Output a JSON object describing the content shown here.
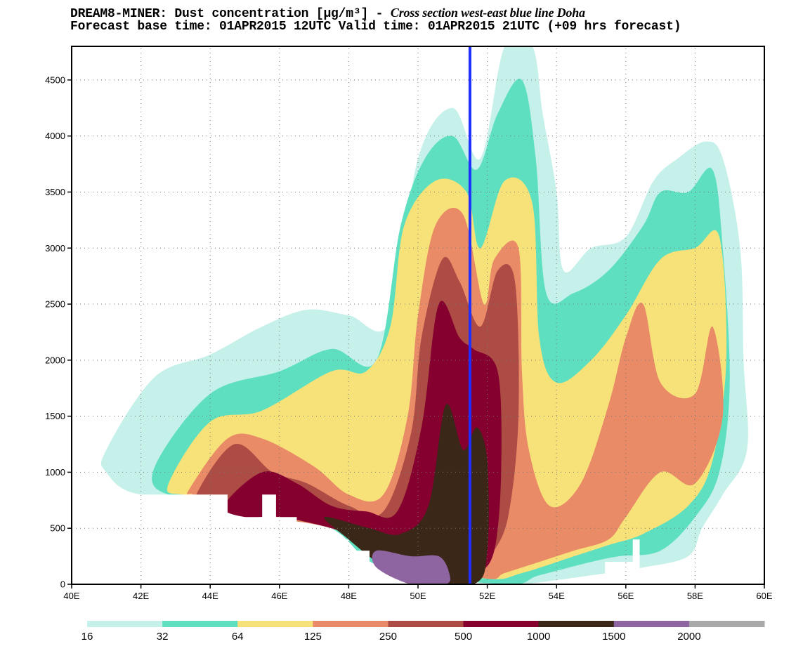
{
  "header": {
    "line1_prefix": "DREAM8-MINER: Dust concentration [μg/m³] - ",
    "line1_italic": "Cross section west-east  blue line Doha",
    "line2": "Forecast base time: 01APR2015 12UTC  Valid time: 01APR2015 21UTC (+09 hrs forecast)"
  },
  "colors": {
    "levels": [
      "#c6f0ea",
      "#5ee0c0",
      "#f7e27a",
      "#e88b66",
      "#ad4c45",
      "#85002f",
      "#3b2718",
      "#8e65a0",
      "#a9a9a9"
    ],
    "marker_line": "#1f2fff",
    "grid": "#777777"
  },
  "chart_data": {
    "type": "heatmap",
    "title": "Dust concentration [μg/m³] - Cross section west-east blue line Doha",
    "xlabel": "",
    "ylabel": "",
    "xlim": [
      40,
      60
    ],
    "ylim": [
      0,
      4800
    ],
    "x_ticks": [
      "40E",
      "42E",
      "44E",
      "46E",
      "48E",
      "50E",
      "52E",
      "54E",
      "56E",
      "58E",
      "60E"
    ],
    "y_ticks": [
      "0",
      "500",
      "1000",
      "1500",
      "2000",
      "2500",
      "3000",
      "3500",
      "4000",
      "4500"
    ],
    "grid": true,
    "marker_line_longitude": 51.5,
    "legend": {
      "position": "bottom",
      "labels": [
        "16",
        "32",
        "64",
        "125",
        "250",
        "500",
        "1000",
        "1500",
        "2000"
      ],
      "thresholds": [
        16,
        32,
        64,
        125,
        250,
        500,
        1000,
        1500,
        2000
      ]
    },
    "contour_regions": [
      {
        "level": 16,
        "polygon": [
          [
            41.0,
            1200
          ],
          [
            42.4,
            1850
          ],
          [
            44.0,
            2050
          ],
          [
            45.5,
            2300
          ],
          [
            46.8,
            2450
          ],
          [
            48.0,
            2400
          ],
          [
            49.2,
            2350
          ],
          [
            50.0,
            3800
          ],
          [
            51.0,
            4250
          ],
          [
            51.8,
            3800
          ],
          [
            52.5,
            4800
          ],
          [
            53.3,
            4800
          ],
          [
            53.6,
            4200
          ],
          [
            54.0,
            3500
          ],
          [
            54.2,
            2800
          ],
          [
            55.0,
            3000
          ],
          [
            56.0,
            3100
          ],
          [
            56.8,
            3600
          ],
          [
            57.5,
            3800
          ],
          [
            58.3,
            3950
          ],
          [
            58.8,
            3800
          ],
          [
            59.3,
            3000
          ],
          [
            59.4,
            2000
          ],
          [
            59.5,
            1200
          ],
          [
            58.8,
            800
          ],
          [
            58.2,
            500
          ],
          [
            57.8,
            250
          ],
          [
            56.5,
            150
          ],
          [
            55.0,
            80
          ],
          [
            53.0,
            0
          ],
          [
            52.0,
            0
          ],
          [
            49.5,
            150
          ],
          [
            47.5,
            500
          ],
          [
            45.0,
            800
          ],
          [
            42.0,
            800
          ],
          [
            41.0,
            1000
          ]
        ]
      },
      {
        "level": 32,
        "polygon": [
          [
            42.4,
            1050
          ],
          [
            44.0,
            1700
          ],
          [
            46.0,
            1900
          ],
          [
            47.5,
            2100
          ],
          [
            48.8,
            2000
          ],
          [
            49.5,
            3200
          ],
          [
            50.2,
            3800
          ],
          [
            51.0,
            4000
          ],
          [
            51.7,
            3700
          ],
          [
            52.3,
            4200
          ],
          [
            53.0,
            4500
          ],
          [
            53.4,
            3800
          ],
          [
            53.7,
            2600
          ],
          [
            54.5,
            2600
          ],
          [
            55.5,
            2800
          ],
          [
            56.5,
            3200
          ],
          [
            57.0,
            3500
          ],
          [
            57.8,
            3500
          ],
          [
            58.5,
            3700
          ],
          [
            58.8,
            3000
          ],
          [
            59.0,
            1800
          ],
          [
            58.7,
            1000
          ],
          [
            58.0,
            600
          ],
          [
            57.0,
            300
          ],
          [
            55.8,
            250
          ],
          [
            55.0,
            200
          ],
          [
            53.5,
            80
          ],
          [
            52.5,
            0
          ],
          [
            49.0,
            150
          ],
          [
            47.5,
            500
          ],
          [
            45.0,
            800
          ],
          [
            42.8,
            800
          ]
        ]
      },
      {
        "level": 64,
        "polygon": [
          [
            42.8,
            900
          ],
          [
            44.0,
            1450
          ],
          [
            45.5,
            1550
          ],
          [
            47.5,
            1900
          ],
          [
            48.5,
            1900
          ],
          [
            49.2,
            2300
          ],
          [
            49.6,
            3200
          ],
          [
            50.5,
            3600
          ],
          [
            51.4,
            3500
          ],
          [
            51.8,
            3000
          ],
          [
            52.5,
            3600
          ],
          [
            53.3,
            3400
          ],
          [
            53.5,
            2200
          ],
          [
            54.0,
            1800
          ],
          [
            55.0,
            2000
          ],
          [
            56.0,
            2400
          ],
          [
            57.0,
            2900
          ],
          [
            58.0,
            3000
          ],
          [
            58.7,
            3100
          ],
          [
            58.9,
            2000
          ],
          [
            58.5,
            1100
          ],
          [
            57.8,
            700
          ],
          [
            56.5,
            450
          ],
          [
            55.5,
            350
          ],
          [
            54.5,
            250
          ],
          [
            53.0,
            100
          ],
          [
            52.0,
            50
          ],
          [
            49.5,
            200
          ],
          [
            47.5,
            550
          ],
          [
            45.0,
            800
          ],
          [
            43.2,
            800
          ]
        ]
      },
      {
        "level": 125,
        "polygon": [
          [
            43.4,
            850
          ],
          [
            44.5,
            1300
          ],
          [
            45.5,
            1300
          ],
          [
            47.0,
            1050
          ],
          [
            48.0,
            800
          ],
          [
            49.0,
            800
          ],
          [
            49.7,
            1500
          ],
          [
            50.0,
            2400
          ],
          [
            50.5,
            3200
          ],
          [
            51.3,
            3300
          ],
          [
            51.9,
            2500
          ],
          [
            52.2,
            2900
          ],
          [
            52.9,
            3000
          ],
          [
            53.0,
            1900
          ],
          [
            53.2,
            1200
          ],
          [
            53.8,
            700
          ],
          [
            54.7,
            900
          ],
          [
            55.5,
            1600
          ],
          [
            56.0,
            2200
          ],
          [
            56.5,
            2500
          ],
          [
            57.0,
            1800
          ],
          [
            58.0,
            1700
          ],
          [
            58.5,
            2300
          ],
          [
            58.8,
            1500
          ],
          [
            58.0,
            900
          ],
          [
            57.0,
            1000
          ],
          [
            56.0,
            600
          ],
          [
            55.5,
            400
          ],
          [
            54.5,
            300
          ],
          [
            53.5,
            200
          ],
          [
            52.5,
            100
          ],
          [
            52.0,
            50
          ],
          [
            50.0,
            200
          ],
          [
            47.5,
            500
          ],
          [
            45.5,
            600
          ],
          [
            44.0,
            700
          ],
          [
            43.5,
            800
          ]
        ]
      },
      {
        "level": 250,
        "polygon": [
          [
            43.6,
            800
          ],
          [
            44.7,
            1250
          ],
          [
            45.8,
            1000
          ],
          [
            46.8,
            900
          ],
          [
            48.0,
            700
          ],
          [
            49.0,
            650
          ],
          [
            49.8,
            1350
          ],
          [
            50.1,
            2200
          ],
          [
            50.7,
            2900
          ],
          [
            51.2,
            2700
          ],
          [
            51.8,
            2300
          ],
          [
            52.3,
            2800
          ],
          [
            52.8,
            2700
          ],
          [
            52.9,
            1500
          ],
          [
            52.6,
            600
          ],
          [
            52.1,
            250
          ],
          [
            51.8,
            100
          ],
          [
            51.0,
            100
          ],
          [
            49.5,
            300
          ],
          [
            47.5,
            600
          ],
          [
            45.0,
            700
          ],
          [
            44.0,
            780
          ]
        ]
      },
      {
        "level": 500,
        "polygon": [
          [
            44.4,
            700
          ],
          [
            45.5,
            1000
          ],
          [
            46.5,
            900
          ],
          [
            47.5,
            700
          ],
          [
            48.5,
            650
          ],
          [
            49.4,
            650
          ],
          [
            50.1,
            1400
          ],
          [
            50.6,
            2500
          ],
          [
            51.2,
            2200
          ],
          [
            51.6,
            2100
          ],
          [
            52.3,
            1900
          ],
          [
            52.4,
            1000
          ],
          [
            52.2,
            300
          ],
          [
            51.7,
            100
          ],
          [
            51.0,
            100
          ],
          [
            50.5,
            250
          ],
          [
            49.0,
            350
          ],
          [
            47.5,
            500
          ],
          [
            46.0,
            600
          ],
          [
            45.0,
            600
          ]
        ]
      },
      {
        "level": 1000,
        "polygon": [
          [
            47.3,
            600
          ],
          [
            48.6,
            500
          ],
          [
            49.5,
            450
          ],
          [
            50.3,
            700
          ],
          [
            50.8,
            1600
          ],
          [
            51.3,
            1200
          ],
          [
            51.7,
            1400
          ],
          [
            52.0,
            1100
          ],
          [
            52.0,
            300
          ],
          [
            51.6,
            0
          ],
          [
            49.8,
            0
          ],
          [
            48.8,
            200
          ],
          [
            48.0,
            400
          ]
        ]
      },
      {
        "level": 1500,
        "polygon": [
          [
            48.8,
            300
          ],
          [
            49.8,
            250
          ],
          [
            50.6,
            250
          ],
          [
            50.9,
            100
          ],
          [
            50.8,
            0
          ],
          [
            49.8,
            0
          ],
          [
            48.8,
            150
          ]
        ]
      }
    ],
    "masked_regions": [
      {
        "polygon": [
          [
            40.0,
            0
          ],
          [
            40.0,
            800
          ],
          [
            44.5,
            800
          ],
          [
            44.5,
            600
          ],
          [
            45.5,
            600
          ],
          [
            45.5,
            800
          ],
          [
            45.9,
            800
          ],
          [
            45.9,
            600
          ],
          [
            46.5,
            600
          ],
          [
            46.5,
            400
          ],
          [
            48.0,
            400
          ],
          [
            48.0,
            300
          ],
          [
            48.6,
            300
          ],
          [
            48.6,
            0
          ]
        ]
      },
      {
        "polygon": [
          [
            55.4,
            0
          ],
          [
            55.4,
            200
          ],
          [
            56.2,
            200
          ],
          [
            56.2,
            400
          ],
          [
            56.4,
            400
          ],
          [
            56.4,
            0
          ]
        ]
      }
    ]
  }
}
